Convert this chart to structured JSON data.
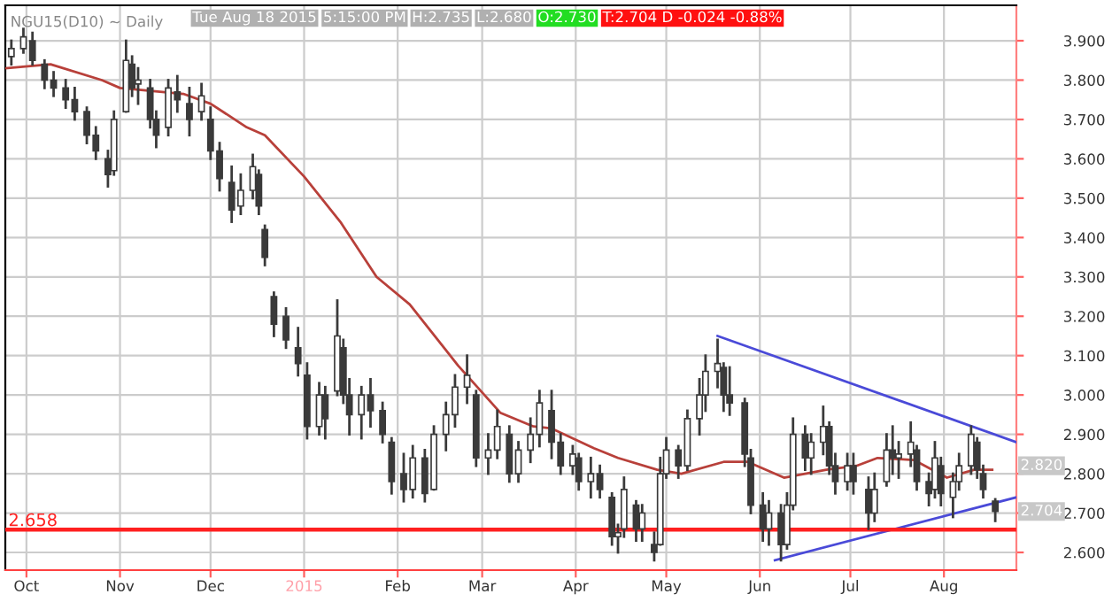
{
  "chart_data": {
    "type": "candlestick",
    "title": "NGU15(D10) ~ Daily",
    "annotations": [
      "Tue Aug 18 2015",
      "5:15:00 PM",
      "H:2.735",
      "L:2.680",
      "O:2.730",
      "T:2.704 D -0.024 -0.88%",
      {
        "text": "2.820",
        "x": "2015-08-18",
        "y": 2.82
      },
      {
        "text": "2.704",
        "x": "2015-08-18",
        "y": 2.704
      }
    ],
    "color": "#3a3a3a",
    "x": [
      "2014-09-26",
      "2014-09-30",
      "2014-10-03",
      "2014-10-07",
      "2014-10-10",
      "2014-10-14",
      "2014-10-17",
      "2014-10-21",
      "2014-10-24",
      "2014-10-28",
      "2014-10-30",
      "2014-11-03",
      "2014-11-05",
      "2014-11-07",
      "2014-11-11",
      "2014-11-13",
      "2014-11-17",
      "2014-11-20",
      "2014-11-24",
      "2014-11-28",
      "2014-12-01",
      "2014-12-04",
      "2014-12-08",
      "2014-12-11",
      "2014-12-15",
      "2014-12-17",
      "2014-12-19",
      "2014-12-22",
      "2014-12-26",
      "2014-12-30",
      "2015-01-02",
      "2015-01-06",
      "2015-01-08",
      "2015-01-12",
      "2015-01-14",
      "2015-01-16",
      "2015-01-20",
      "2015-01-23",
      "2015-01-27",
      "2015-01-30",
      "2015-02-03",
      "2015-02-06",
      "2015-02-10",
      "2015-02-13",
      "2015-02-17",
      "2015-02-20",
      "2015-02-24",
      "2015-02-27",
      "2015-03-03",
      "2015-03-06",
      "2015-03-10",
      "2015-03-13",
      "2015-03-17",
      "2015-03-20",
      "2015-03-24",
      "2015-03-27",
      "2015-03-31",
      "2015-04-02",
      "2015-04-06",
      "2015-04-09",
      "2015-04-13",
      "2015-04-15",
      "2015-04-17",
      "2015-04-21",
      "2015-04-23",
      "2015-04-27",
      "2015-04-29",
      "2015-05-01",
      "2015-05-05",
      "2015-05-08",
      "2015-05-12",
      "2015-05-14",
      "2015-05-18",
      "2015-05-20",
      "2015-05-22",
      "2015-05-27",
      "2015-05-29",
      "2015-06-02",
      "2015-06-04",
      "2015-06-08",
      "2015-06-10",
      "2015-06-12",
      "2015-06-16",
      "2015-06-18",
      "2015-06-22",
      "2015-06-24",
      "2015-06-26",
      "2015-06-30",
      "2015-07-02",
      "2015-07-07",
      "2015-07-09",
      "2015-07-13",
      "2015-07-15",
      "2015-07-17",
      "2015-07-21",
      "2015-07-23",
      "2015-07-27",
      "2015-07-29",
      "2015-07-31",
      "2015-08-04",
      "2015-08-06",
      "2015-08-10",
      "2015-08-12",
      "2015-08-14",
      "2015-08-18"
    ],
    "ohlc": [
      [
        3.86,
        3.9,
        3.84,
        3.88
      ],
      [
        3.88,
        3.93,
        3.87,
        3.91
      ],
      [
        3.9,
        3.92,
        3.84,
        3.85
      ],
      [
        3.84,
        3.85,
        3.78,
        3.8
      ],
      [
        3.8,
        3.82,
        3.76,
        3.78
      ],
      [
        3.78,
        3.8,
        3.73,
        3.75
      ],
      [
        3.75,
        3.78,
        3.7,
        3.72
      ],
      [
        3.72,
        3.73,
        3.64,
        3.66
      ],
      [
        3.66,
        3.68,
        3.6,
        3.62
      ],
      [
        3.6,
        3.62,
        3.53,
        3.56
      ],
      [
        3.57,
        3.72,
        3.56,
        3.7
      ],
      [
        3.72,
        3.9,
        3.72,
        3.85
      ],
      [
        3.84,
        3.86,
        3.76,
        3.78
      ],
      [
        3.79,
        3.83,
        3.74,
        3.8
      ],
      [
        3.78,
        3.8,
        3.68,
        3.7
      ],
      [
        3.7,
        3.72,
        3.63,
        3.66
      ],
      [
        3.68,
        3.8,
        3.66,
        3.78
      ],
      [
        3.77,
        3.81,
        3.72,
        3.75
      ],
      [
        3.74,
        3.78,
        3.66,
        3.7
      ],
      [
        3.72,
        3.79,
        3.7,
        3.76
      ],
      [
        3.7,
        3.73,
        3.6,
        3.62
      ],
      [
        3.62,
        3.64,
        3.52,
        3.55
      ],
      [
        3.54,
        3.58,
        3.44,
        3.47
      ],
      [
        3.48,
        3.56,
        3.46,
        3.52
      ],
      [
        3.52,
        3.61,
        3.5,
        3.58
      ],
      [
        3.56,
        3.57,
        3.46,
        3.48
      ],
      [
        3.42,
        3.43,
        3.33,
        3.35
      ],
      [
        3.25,
        3.26,
        3.15,
        3.18
      ],
      [
        3.2,
        3.22,
        3.12,
        3.14
      ],
      [
        3.12,
        3.17,
        3.05,
        3.08
      ],
      [
        3.05,
        3.08,
        2.89,
        2.92
      ],
      [
        2.92,
        3.03,
        2.9,
        3.0
      ],
      [
        3.0,
        3.02,
        2.89,
        2.94
      ],
      [
        3.01,
        3.24,
        3.0,
        3.15
      ],
      [
        3.12,
        3.14,
        2.98,
        3.0
      ],
      [
        3.0,
        3.04,
        2.9,
        2.95
      ],
      [
        2.95,
        3.02,
        2.89,
        3.0
      ],
      [
        3.0,
        3.04,
        2.92,
        2.96
      ],
      [
        2.96,
        2.98,
        2.88,
        2.9
      ],
      [
        2.88,
        2.89,
        2.75,
        2.78
      ],
      [
        2.8,
        2.85,
        2.73,
        2.76
      ],
      [
        2.76,
        2.87,
        2.74,
        2.84
      ],
      [
        2.84,
        2.86,
        2.73,
        2.75
      ],
      [
        2.76,
        2.92,
        2.76,
        2.9
      ],
      [
        2.9,
        2.98,
        2.86,
        2.95
      ],
      [
        2.95,
        3.05,
        2.92,
        3.02
      ],
      [
        3.02,
        3.1,
        2.98,
        3.05
      ],
      [
        3.0,
        3.01,
        2.82,
        2.84
      ],
      [
        2.84,
        2.9,
        2.8,
        2.86
      ],
      [
        2.86,
        2.96,
        2.84,
        2.92
      ],
      [
        2.9,
        2.92,
        2.78,
        2.8
      ],
      [
        2.8,
        2.88,
        2.78,
        2.86
      ],
      [
        2.86,
        2.94,
        2.83,
        2.9
      ],
      [
        2.9,
        3.01,
        2.87,
        2.98
      ],
      [
        2.96,
        3.01,
        2.84,
        2.88
      ],
      [
        2.88,
        2.9,
        2.8,
        2.82
      ],
      [
        2.82,
        2.87,
        2.8,
        2.85
      ],
      [
        2.84,
        2.85,
        2.76,
        2.78
      ],
      [
        2.78,
        2.84,
        2.74,
        2.8
      ],
      [
        2.8,
        2.82,
        2.74,
        2.76
      ],
      [
        2.74,
        2.75,
        2.62,
        2.64
      ],
      [
        2.64,
        2.67,
        2.6,
        2.65
      ],
      [
        2.66,
        2.79,
        2.64,
        2.76
      ],
      [
        2.72,
        2.73,
        2.63,
        2.66
      ],
      [
        2.66,
        2.72,
        2.63,
        2.7
      ],
      [
        2.62,
        2.65,
        2.58,
        2.6
      ],
      [
        2.62,
        2.84,
        2.62,
        2.8
      ],
      [
        2.8,
        2.89,
        2.79,
        2.86
      ],
      [
        2.86,
        2.87,
        2.79,
        2.82
      ],
      [
        2.82,
        2.96,
        2.81,
        2.94
      ],
      [
        2.94,
        3.04,
        2.9,
        3.0
      ],
      [
        3.0,
        3.1,
        2.96,
        3.06
      ],
      [
        3.06,
        3.14,
        3.02,
        3.08
      ],
      [
        3.07,
        3.08,
        2.96,
        3.0
      ],
      [
        3.0,
        3.07,
        2.95,
        2.98
      ],
      [
        2.98,
        2.99,
        2.82,
        2.85
      ],
      [
        2.84,
        2.86,
        2.7,
        2.72
      ],
      [
        2.72,
        2.75,
        2.63,
        2.66
      ],
      [
        2.66,
        2.73,
        2.62,
        2.7
      ],
      [
        2.7,
        2.72,
        2.58,
        2.62
      ],
      [
        2.62,
        2.75,
        2.61,
        2.72
      ],
      [
        2.72,
        2.94,
        2.71,
        2.9
      ],
      [
        2.9,
        2.92,
        2.81,
        2.84
      ],
      [
        2.84,
        2.9,
        2.8,
        2.88
      ],
      [
        2.88,
        2.97,
        2.85,
        2.92
      ],
      [
        2.92,
        2.93,
        2.8,
        2.82
      ],
      [
        2.82,
        2.85,
        2.75,
        2.78
      ],
      [
        2.78,
        2.85,
        2.76,
        2.82
      ],
      [
        2.82,
        2.85,
        2.75,
        2.78
      ],
      [
        2.76,
        2.79,
        2.66,
        2.7
      ],
      [
        2.7,
        2.8,
        2.68,
        2.76
      ],
      [
        2.78,
        2.9,
        2.77,
        2.86
      ],
      [
        2.86,
        2.92,
        2.8,
        2.84
      ],
      [
        2.84,
        2.88,
        2.79,
        2.85
      ],
      [
        2.85,
        2.93,
        2.82,
        2.88
      ],
      [
        2.86,
        2.87,
        2.76,
        2.78
      ],
      [
        2.78,
        2.8,
        2.72,
        2.75
      ],
      [
        2.76,
        2.88,
        2.74,
        2.84
      ],
      [
        2.82,
        2.84,
        2.72,
        2.75
      ],
      [
        2.74,
        2.8,
        2.69,
        2.78
      ],
      [
        2.78,
        2.85,
        2.76,
        2.82
      ],
      [
        2.82,
        2.92,
        2.8,
        2.9
      ],
      [
        2.88,
        2.89,
        2.79,
        2.81
      ],
      [
        2.8,
        2.82,
        2.74,
        2.76
      ],
      [
        2.73,
        2.735,
        2.68,
        2.704
      ]
    ],
    "series": [
      {
        "type": "line",
        "color": "#b8403a",
        "x": [
          "2014-09-24",
          "2014-10-09",
          "2014-10-26",
          "2014-11-01",
          "2014-11-22",
          "2014-12-01",
          "2014-12-13",
          "2014-12-19",
          "2015-01-01",
          "2015-01-13",
          "2015-01-25",
          "2015-02-05",
          "2015-02-21",
          "2015-03-07",
          "2015-03-18",
          "2015-03-24",
          "2015-04-07",
          "2015-04-15",
          "2015-04-28",
          "2015-05-06",
          "2015-05-20",
          "2015-05-28",
          "2015-06-09",
          "2015-06-23",
          "2015-07-03",
          "2015-07-10",
          "2015-07-22",
          "2015-08-02",
          "2015-08-11",
          "2015-08-17"
        ],
        "values": [
          3.83,
          3.84,
          3.8,
          3.78,
          3.765,
          3.74,
          3.68,
          3.66,
          3.555,
          3.44,
          3.3,
          3.23,
          3.075,
          2.955,
          2.92,
          2.915,
          2.865,
          2.84,
          2.81,
          2.8,
          2.83,
          2.83,
          2.79,
          2.81,
          2.82,
          2.84,
          2.835,
          2.79,
          2.81,
          2.81
        ]
      },
      {
        "type": "line",
        "color": "#4a4ad8",
        "x": [
          "2015-05-18",
          "2015-08-25"
        ],
        "values": [
          3.15,
          2.88
        ]
      },
      {
        "type": "line",
        "color": "#4a4ad8",
        "x": [
          "2015-06-06",
          "2015-08-25"
        ],
        "values": [
          2.58,
          2.74
        ]
      }
    ],
    "ref_lines": [
      {
        "axis": "y",
        "value": 2.658,
        "label": "2.658",
        "color": "#ff2020"
      }
    ],
    "xlim": [
      "2014-09-24",
      "2015-08-25"
    ],
    "xticks": [
      {
        "value": "2014-10-01",
        "label": "Oct"
      },
      {
        "value": "2014-11-01",
        "label": "Nov"
      },
      {
        "value": "2014-12-01",
        "label": "Dec"
      },
      {
        "value": "2015-01-01",
        "label": "2015"
      },
      {
        "value": "2015-02-01",
        "label": "Feb"
      },
      {
        "value": "2015-03-01",
        "label": "Mar"
      },
      {
        "value": "2015-04-01",
        "label": "Apr"
      },
      {
        "value": "2015-05-01",
        "label": "May"
      },
      {
        "value": "2015-06-01",
        "label": "Jun"
      },
      {
        "value": "2015-07-01",
        "label": "Jul"
      },
      {
        "value": "2015-08-01",
        "label": "Aug"
      }
    ],
    "ylim": [
      2.555,
      3.99
    ],
    "yticks": [
      {
        "value": 2.6,
        "label": "2.600"
      },
      {
        "value": 2.7,
        "label": "2.700"
      },
      {
        "value": 2.8,
        "label": "2.800"
      },
      {
        "value": 2.9,
        "label": "2.900"
      },
      {
        "value": 3.0,
        "label": "3.000"
      },
      {
        "value": 3.1,
        "label": "3.100"
      },
      {
        "value": 3.2,
        "label": "3.200"
      },
      {
        "value": 3.3,
        "label": "3.300"
      },
      {
        "value": 3.4,
        "label": "3.400"
      },
      {
        "value": 3.5,
        "label": "3.500"
      },
      {
        "value": 3.6,
        "label": "3.600"
      },
      {
        "value": 3.7,
        "label": "3.700"
      },
      {
        "value": 3.8,
        "label": "3.800"
      },
      {
        "value": 3.9,
        "label": "3.900"
      }
    ],
    "grid": true
  }
}
